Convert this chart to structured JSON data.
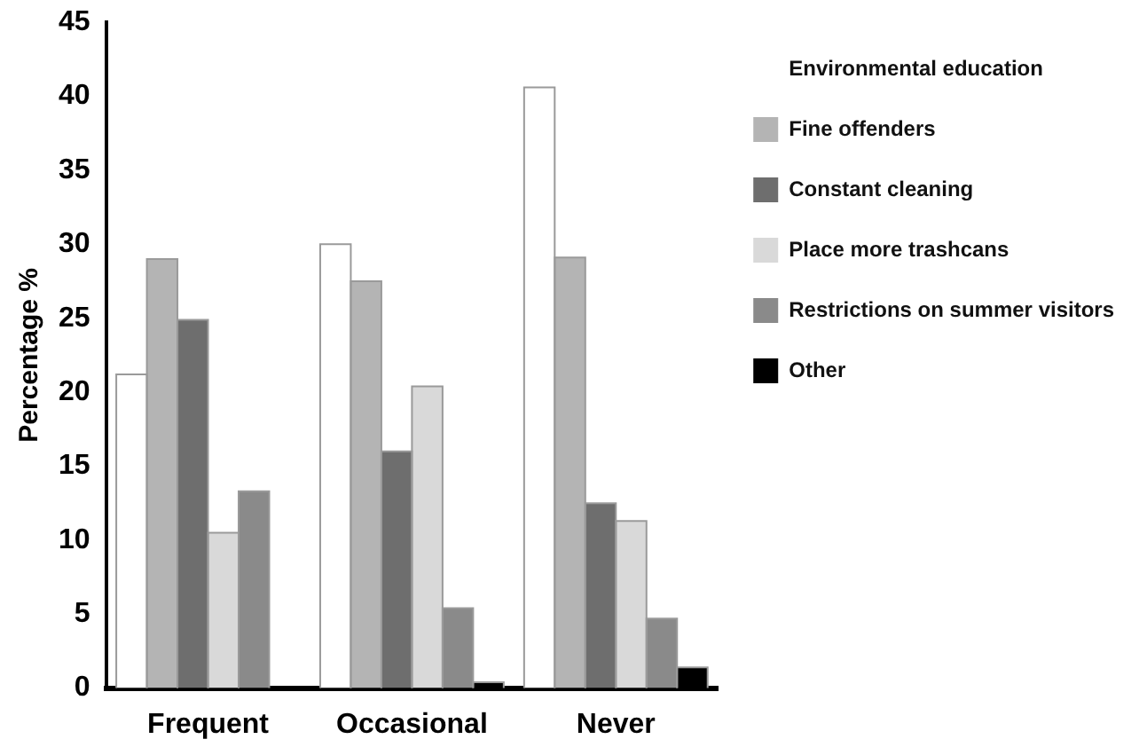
{
  "chart_data": {
    "type": "bar",
    "ylabel": "Percentage %",
    "categories": [
      "Frequent",
      "Occasional",
      "Never"
    ],
    "series": [
      {
        "name": "Environmental education",
        "color": "#ffffff",
        "values": [
          21.2,
          30,
          40.6
        ]
      },
      {
        "name": "Fine offenders",
        "color": "#b4b4b4",
        "values": [
          29,
          27.5,
          29.1
        ]
      },
      {
        "name": "Constant cleaning",
        "color": "#6e6e6e",
        "values": [
          24.9,
          16,
          12.5
        ]
      },
      {
        "name": "Place more trashcans",
        "color": "#d9d9d9",
        "values": [
          10.5,
          20.4,
          11.3
        ]
      },
      {
        "name": "Restrictions on summer visitors",
        "color": "#8a8a8a",
        "values": [
          13.3,
          5.4,
          4.7
        ]
      },
      {
        "name": "Other",
        "color": "#000000",
        "values": [
          null,
          0.4,
          1.4
        ]
      }
    ],
    "ylim": [
      0,
      45
    ],
    "yticks": [
      0,
      5,
      10,
      15,
      20,
      25,
      30,
      35,
      40,
      45
    ],
    "grid": false,
    "legend": "right"
  }
}
